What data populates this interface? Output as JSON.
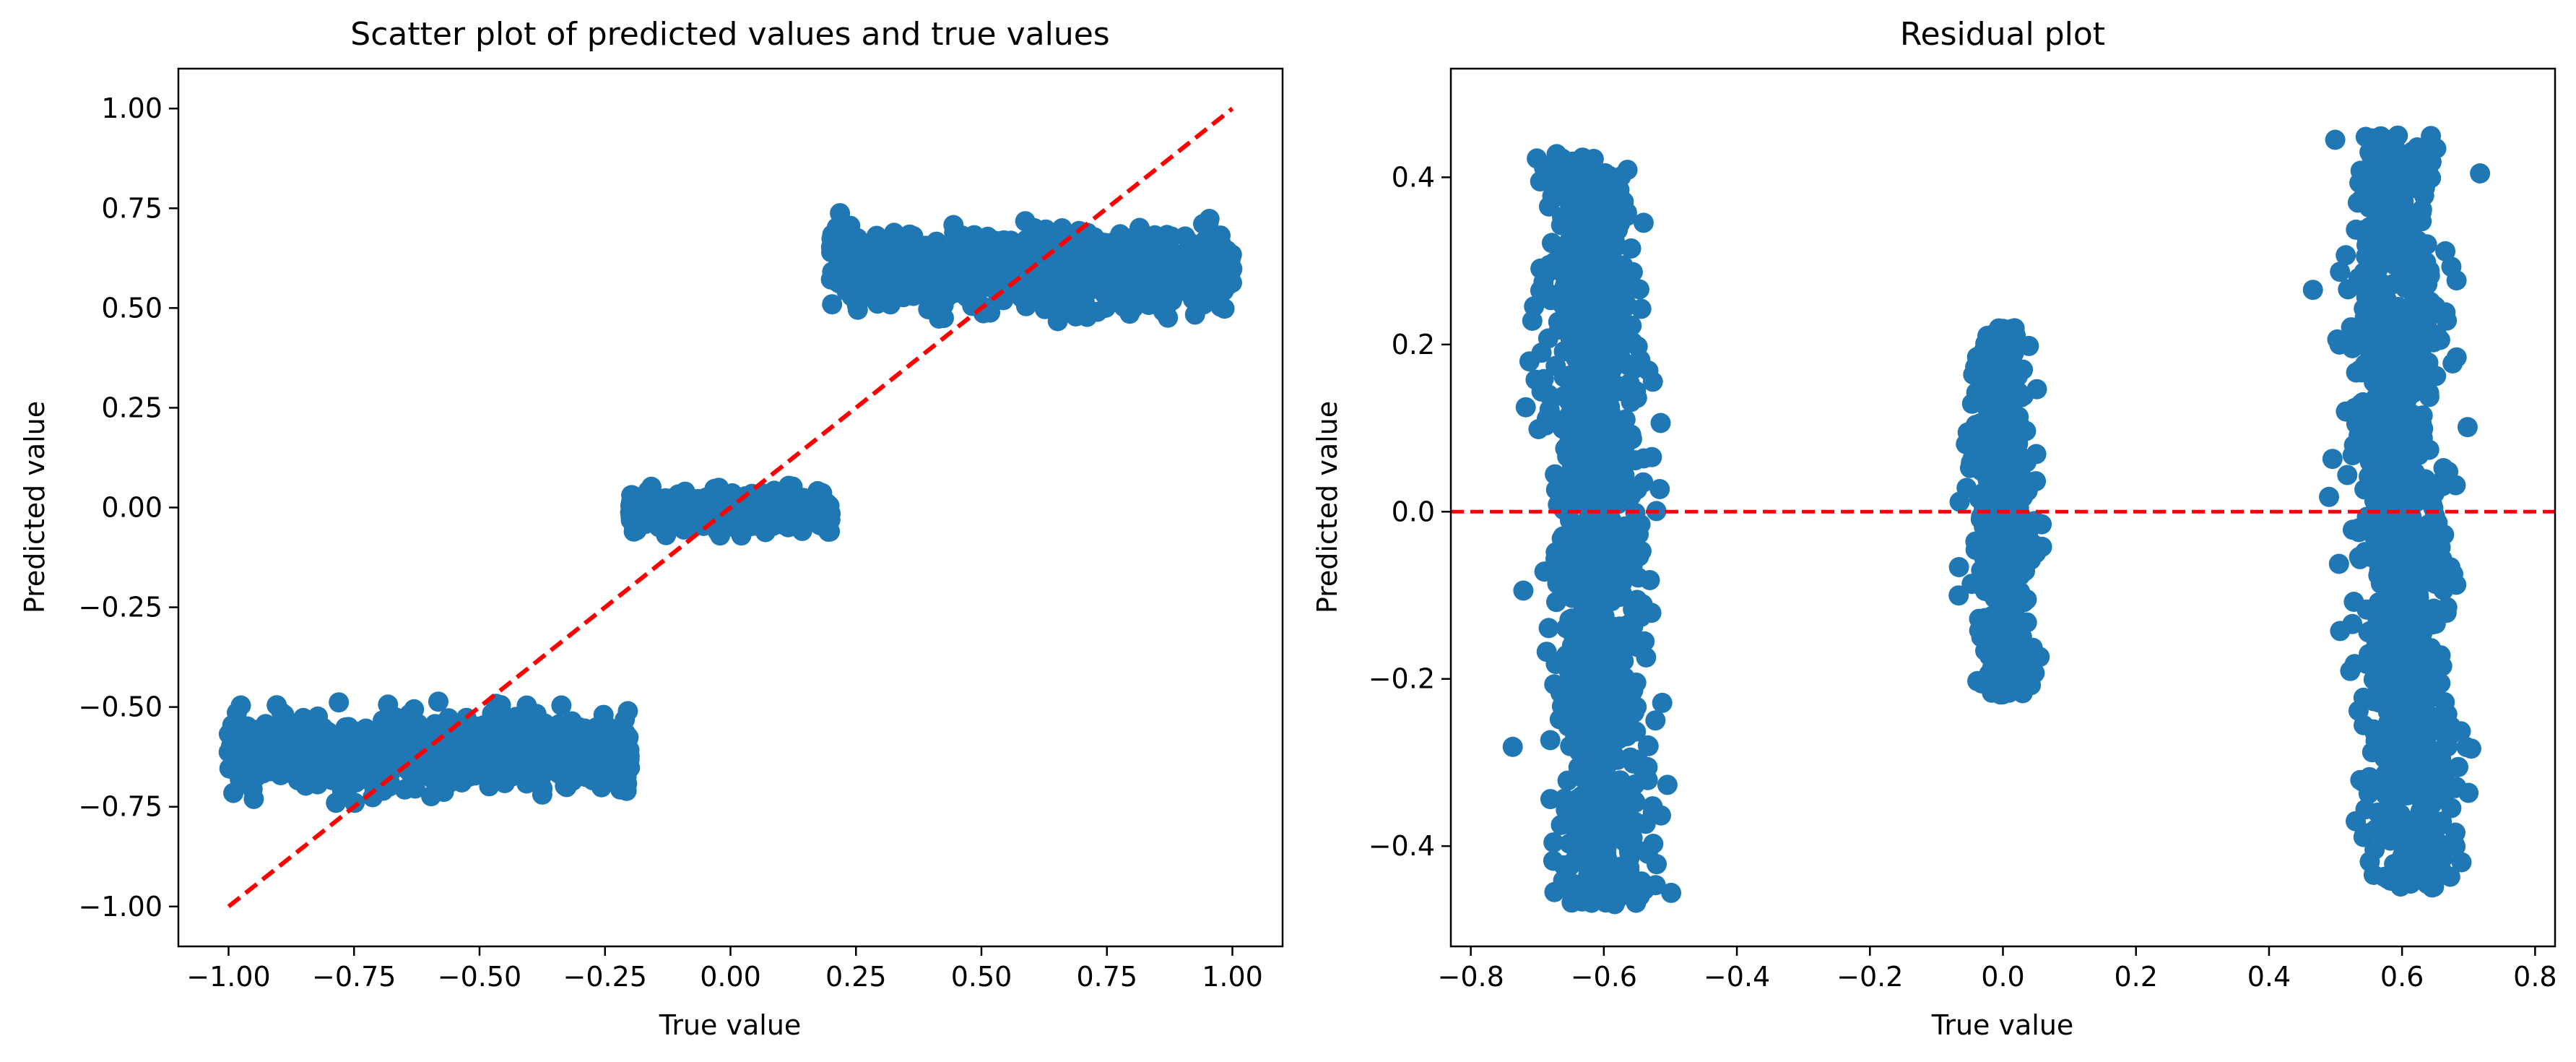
{
  "figure": {
    "background": "#ffffff",
    "point_color": "#1f77b4",
    "line_color": "#ff0000"
  },
  "chart_data": [
    {
      "type": "scatter",
      "title": "Scatter plot of predicted values and true values",
      "xlabel": "True value",
      "ylabel": "Predicted value",
      "xlim": [
        -1.1,
        1.1
      ],
      "ylim": [
        -1.1,
        1.1
      ],
      "xticks": [
        -1.0,
        -0.75,
        -0.5,
        -0.25,
        0.0,
        0.25,
        0.5,
        0.75,
        1.0
      ],
      "xtick_labels": [
        "−1.00",
        "−0.75",
        "−0.50",
        "−0.25",
        "0.00",
        "0.25",
        "0.50",
        "0.75",
        "1.00"
      ],
      "yticks": [
        -1.0,
        -0.75,
        -0.5,
        -0.25,
        0.0,
        0.25,
        0.5,
        0.75,
        1.0
      ],
      "ytick_labels": [
        "−1.00",
        "−0.75",
        "−0.50",
        "−0.25",
        "0.00",
        "0.25",
        "0.50",
        "0.75",
        "1.00"
      ],
      "grid": false,
      "reference_line": {
        "style": "dashed",
        "color": "#ff0000",
        "x": [
          -1.0,
          1.0
        ],
        "y": [
          -1.0,
          1.0
        ]
      },
      "point_clusters": [
        {
          "x_range": [
            -1.0,
            -0.2
          ],
          "y_center": -0.61,
          "y_spread": 0.045,
          "y_min": -0.74,
          "y_max": -0.45,
          "count": 900
        },
        {
          "x_range": [
            -0.2,
            0.2
          ],
          "y_center": -0.01,
          "y_spread": 0.022,
          "y_min": -0.07,
          "y_max": 0.08,
          "count": 500
        },
        {
          "x_range": [
            0.2,
            1.0
          ],
          "y_center": 0.6,
          "y_spread": 0.045,
          "y_min": 0.46,
          "y_max": 0.77,
          "count": 900
        }
      ]
    },
    {
      "type": "scatter",
      "title": "Residual plot",
      "xlabel": "True value",
      "ylabel": "Predicted value",
      "xlim": [
        -0.83,
        0.83
      ],
      "ylim": [
        -0.52,
        0.53
      ],
      "xticks": [
        -0.8,
        -0.6,
        -0.4,
        -0.2,
        0.0,
        0.2,
        0.4,
        0.6,
        0.8
      ],
      "xtick_labels": [
        "−0.8",
        "−0.6",
        "−0.4",
        "−0.2",
        "0.0",
        "0.2",
        "0.4",
        "0.6",
        "0.8"
      ],
      "yticks": [
        -0.4,
        -0.2,
        0.0,
        0.2,
        0.4
      ],
      "ytick_labels": [
        "−0.4",
        "−0.2",
        "0.0",
        "0.2",
        "0.4"
      ],
      "grid": false,
      "reference_line": {
        "style": "dashed",
        "color": "#ff0000",
        "y": 0.0
      },
      "point_clusters": [
        {
          "x_center": -0.61,
          "x_spread": 0.035,
          "y_top": 0.43,
          "y_bottom": -0.47,
          "lean": 0.1,
          "count": 1000
        },
        {
          "x_center": 0.0,
          "x_spread": 0.022,
          "y_top": 0.22,
          "y_bottom": -0.22,
          "lean": 0.05,
          "count": 500
        },
        {
          "x_center": 0.6,
          "x_spread": 0.035,
          "y_top": 0.45,
          "y_bottom": -0.45,
          "lean": 0.1,
          "count": 1000
        }
      ]
    }
  ]
}
